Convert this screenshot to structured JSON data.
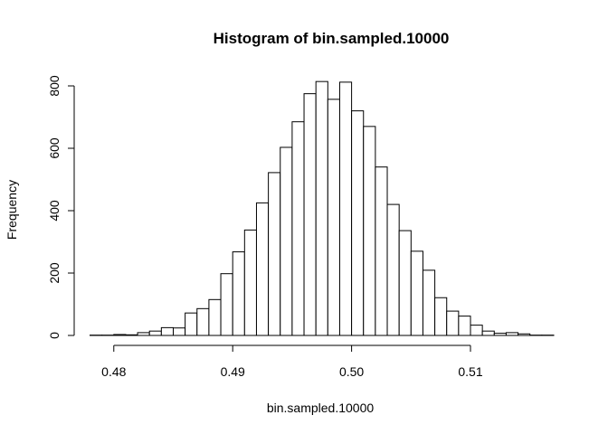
{
  "chart_data": {
    "type": "histogram",
    "title": "Histogram of bin.sampled.10000",
    "xlabel": "bin.sampled.10000",
    "ylabel": "Frequency",
    "bin_width": 0.001,
    "xlim": [
      0.478,
      0.517
    ],
    "ylim": [
      0,
      820
    ],
    "x_ticks": [
      0.48,
      0.49,
      0.5,
      0.51
    ],
    "x_tick_labels": [
      "0.48",
      "0.49",
      "0.50",
      "0.51"
    ],
    "y_ticks": [
      0,
      200,
      400,
      600,
      800
    ],
    "y_tick_labels": [
      "0",
      "200",
      "400",
      "600",
      "800"
    ],
    "bins": [
      {
        "start": 0.478,
        "end": 0.479,
        "count": 1
      },
      {
        "start": 0.479,
        "end": 0.48,
        "count": 1
      },
      {
        "start": 0.48,
        "end": 0.481,
        "count": 3
      },
      {
        "start": 0.481,
        "end": 0.482,
        "count": 2
      },
      {
        "start": 0.482,
        "end": 0.483,
        "count": 9
      },
      {
        "start": 0.483,
        "end": 0.484,
        "count": 14
      },
      {
        "start": 0.484,
        "end": 0.485,
        "count": 25
      },
      {
        "start": 0.485,
        "end": 0.486,
        "count": 24
      },
      {
        "start": 0.486,
        "end": 0.487,
        "count": 72
      },
      {
        "start": 0.487,
        "end": 0.488,
        "count": 86
      },
      {
        "start": 0.488,
        "end": 0.489,
        "count": 115
      },
      {
        "start": 0.489,
        "end": 0.49,
        "count": 198
      },
      {
        "start": 0.49,
        "end": 0.491,
        "count": 268
      },
      {
        "start": 0.491,
        "end": 0.492,
        "count": 338
      },
      {
        "start": 0.492,
        "end": 0.493,
        "count": 425
      },
      {
        "start": 0.493,
        "end": 0.494,
        "count": 522
      },
      {
        "start": 0.494,
        "end": 0.495,
        "count": 603
      },
      {
        "start": 0.495,
        "end": 0.496,
        "count": 685
      },
      {
        "start": 0.496,
        "end": 0.497,
        "count": 775
      },
      {
        "start": 0.497,
        "end": 0.498,
        "count": 814
      },
      {
        "start": 0.498,
        "end": 0.499,
        "count": 757
      },
      {
        "start": 0.499,
        "end": 0.5,
        "count": 812
      },
      {
        "start": 0.5,
        "end": 0.501,
        "count": 720
      },
      {
        "start": 0.501,
        "end": 0.502,
        "count": 670
      },
      {
        "start": 0.502,
        "end": 0.503,
        "count": 540
      },
      {
        "start": 0.503,
        "end": 0.504,
        "count": 420
      },
      {
        "start": 0.504,
        "end": 0.505,
        "count": 336
      },
      {
        "start": 0.505,
        "end": 0.506,
        "count": 270
      },
      {
        "start": 0.506,
        "end": 0.507,
        "count": 209
      },
      {
        "start": 0.507,
        "end": 0.508,
        "count": 121
      },
      {
        "start": 0.508,
        "end": 0.509,
        "count": 78
      },
      {
        "start": 0.509,
        "end": 0.51,
        "count": 62
      },
      {
        "start": 0.51,
        "end": 0.511,
        "count": 33
      },
      {
        "start": 0.511,
        "end": 0.512,
        "count": 14
      },
      {
        "start": 0.512,
        "end": 0.513,
        "count": 7
      },
      {
        "start": 0.513,
        "end": 0.514,
        "count": 9
      },
      {
        "start": 0.514,
        "end": 0.515,
        "count": 5
      },
      {
        "start": 0.515,
        "end": 0.516,
        "count": 1
      },
      {
        "start": 0.516,
        "end": 0.517,
        "count": 1
      }
    ],
    "grid": false,
    "bar_fill": "#ffffff",
    "bar_stroke": "#000000"
  }
}
